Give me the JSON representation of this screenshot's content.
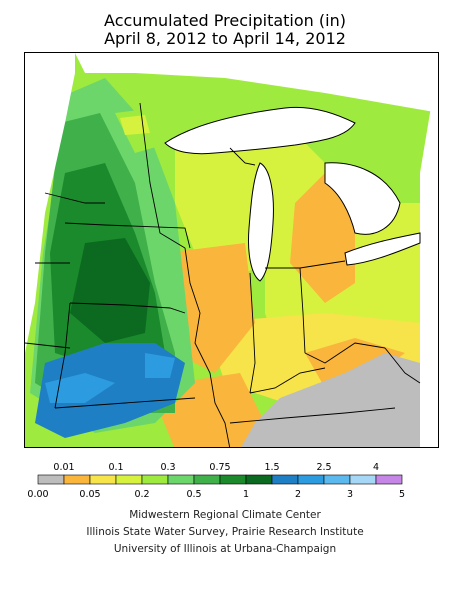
{
  "title": {
    "line1": "Accumulated Precipitation (in)",
    "line2": "April 8, 2012 to April 14, 2012"
  },
  "legend": {
    "swatches": [
      {
        "color": "#bdbdbd"
      },
      {
        "color": "#f9b53c"
      },
      {
        "color": "#f7e34a"
      },
      {
        "color": "#d7f23e"
      },
      {
        "color": "#9fea3f"
      },
      {
        "color": "#6cd66a"
      },
      {
        "color": "#3fb04a"
      },
      {
        "color": "#1a8a2c"
      },
      {
        "color": "#0b6a1f"
      },
      {
        "color": "#1f7fc4"
      },
      {
        "color": "#2c9be0"
      },
      {
        "color": "#5bb9ee"
      },
      {
        "color": "#a7d7f6"
      },
      {
        "color": "#c686e8"
      }
    ],
    "upper_labels": [
      "0.01",
      "0.1",
      "0.3",
      "0.75",
      "1.5",
      "2.5",
      "4"
    ],
    "lower_labels": [
      "0.00",
      "0.05",
      "0.2",
      "0.5",
      "1",
      "2",
      "3",
      "5"
    ]
  },
  "credits": {
    "line1": "Midwestern Regional Climate Center",
    "line2": "Illinois State Water Survey, Prairie Research Institute",
    "line3": "University of Illinois at Urbana-Champaign"
  }
}
